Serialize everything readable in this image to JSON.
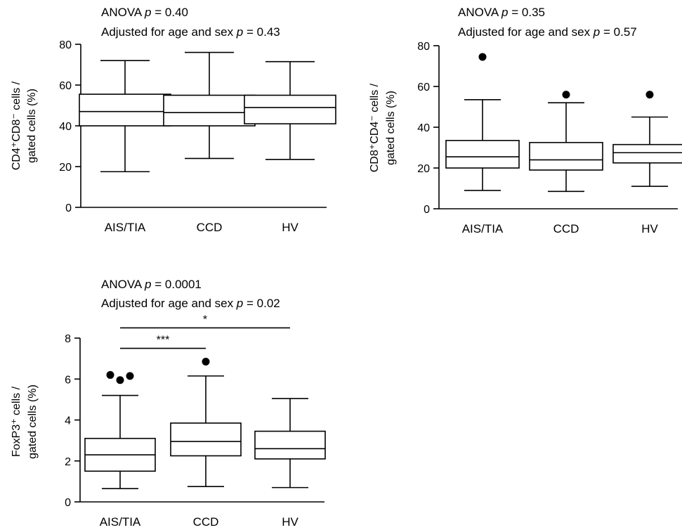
{
  "chart_data": [
    {
      "type": "box",
      "title_line1_prefix": "ANOVA ",
      "title_line1_p": "p",
      "title_line1_value": " = 0.40",
      "title_line2_prefix": "Adjusted for age and sex ",
      "title_line2_p": "p",
      "title_line2_value": " = 0.43",
      "ylabel_line1": "CD4⁺CD8⁻ cells /",
      "ylabel_line2": "gated cells (%)",
      "ylim": [
        0,
        80
      ],
      "yticks": [
        0,
        20,
        40,
        60,
        80
      ],
      "categories": [
        "AIS/TIA",
        "CCD",
        "HV"
      ],
      "boxes": [
        {
          "whisker_low": 17.5,
          "q1": 40,
          "median": 47,
          "q3": 55.5,
          "whisker_high": 72,
          "outliers": []
        },
        {
          "whisker_low": 24,
          "q1": 40,
          "median": 46.5,
          "q3": 55,
          "whisker_high": 76,
          "outliers": []
        },
        {
          "whisker_low": 23.5,
          "q1": 41,
          "median": 49,
          "q3": 55,
          "whisker_high": 71.5,
          "outliers": []
        }
      ],
      "significance": []
    },
    {
      "type": "box",
      "title_line1_prefix": "ANOVA ",
      "title_line1_p": "p",
      "title_line1_value": " = 0.35",
      "title_line2_prefix": "Adjusted for age and sex ",
      "title_line2_p": "p",
      "title_line2_value": " = 0.57",
      "ylabel_line1": "CD8⁺CD4⁻ cells /",
      "ylabel_line2": "gated cells (%)",
      "ylim": [
        0,
        80
      ],
      "yticks": [
        0,
        20,
        40,
        60,
        80
      ],
      "categories": [
        "AIS/TIA",
        "CCD",
        "HV"
      ],
      "boxes": [
        {
          "whisker_low": 9,
          "q1": 20,
          "median": 25.5,
          "q3": 33.5,
          "whisker_high": 53.5,
          "outliers": [
            74.5
          ]
        },
        {
          "whisker_low": 8.5,
          "q1": 19,
          "median": 24,
          "q3": 32.5,
          "whisker_high": 52,
          "outliers": [
            56
          ]
        },
        {
          "whisker_low": 11,
          "q1": 22.5,
          "median": 27.5,
          "q3": 31.5,
          "whisker_high": 45,
          "outliers": [
            56
          ]
        }
      ],
      "significance": []
    },
    {
      "type": "box",
      "title_line1_prefix": "ANOVA ",
      "title_line1_p": "p",
      "title_line1_value": " = 0.0001",
      "title_line2_prefix": "Adjusted for age and sex ",
      "title_line2_p": "p",
      "title_line2_value": " = 0.02",
      "ylabel_line1": "FoxP3⁺ cells /",
      "ylabel_line2": "gated cells (%)",
      "ylim": [
        0,
        8
      ],
      "yticks": [
        0,
        2,
        4,
        6,
        8
      ],
      "categories": [
        "AIS/TIA",
        "CCD",
        "HV"
      ],
      "boxes": [
        {
          "whisker_low": 0.65,
          "q1": 1.5,
          "median": 2.3,
          "q3": 3.1,
          "whisker_high": 5.2,
          "outliers": [
            6.2,
            5.95,
            6.15
          ]
        },
        {
          "whisker_low": 0.75,
          "q1": 2.25,
          "median": 2.95,
          "q3": 3.85,
          "whisker_high": 6.15,
          "outliers": [
            6.85
          ]
        },
        {
          "whisker_low": 0.7,
          "q1": 2.1,
          "median": 2.6,
          "q3": 3.45,
          "whisker_high": 5.05,
          "outliers": []
        }
      ],
      "significance": [
        {
          "from": 0,
          "to": 1,
          "label": "***",
          "level": 7.5
        },
        {
          "from": 0,
          "to": 2,
          "label": "*",
          "level": 8.5
        }
      ]
    }
  ]
}
